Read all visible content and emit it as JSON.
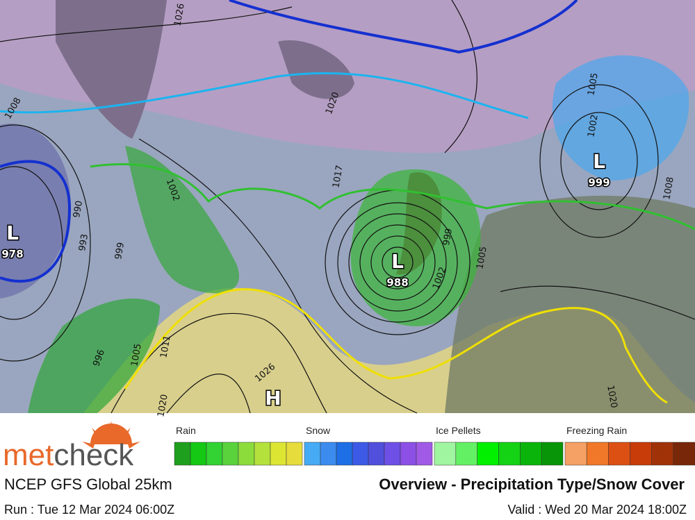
{
  "map": {
    "pressure_centers": [
      {
        "label": "L",
        "value": "978"
      },
      {
        "label": "L",
        "value": "988"
      },
      {
        "label": "L",
        "value": "999"
      },
      {
        "label": "H"
      }
    ],
    "isobar_labels": [
      "1026",
      "1008",
      "1020",
      "1005",
      "1002",
      "1017",
      "1002",
      "990",
      "993",
      "999",
      "996",
      "1005",
      "1011",
      "1026",
      "1020",
      "999",
      "1002",
      "1005",
      "1008",
      "1020"
    ]
  },
  "logo": {
    "part_1": "met",
    "part_2": "check"
  },
  "legend": [
    {
      "name": "Rain",
      "colors": [
        "#1ea01e",
        "#14c814",
        "#32d232",
        "#5ad23c",
        "#8cdc3c",
        "#b4e13c",
        "#dce632",
        "#e6dc3c"
      ]
    },
    {
      "name": "Snow",
      "colors": [
        "#46aaf5",
        "#3c8cf0",
        "#1e6ee6",
        "#3c5ae6",
        "#5050dc",
        "#6e50e6",
        "#8c50e6",
        "#a05ae6"
      ]
    },
    {
      "name": "Ice Pellets",
      "colors": [
        "#a0f5a0",
        "#64f064",
        "#00f000",
        "#14d214",
        "#0ab40a",
        "#089608"
      ]
    },
    {
      "name": "Freezing Rain",
      "colors": [
        "#f5a064",
        "#f07828",
        "#dc5014",
        "#c83c0a",
        "#a03208",
        "#782808"
      ]
    }
  ],
  "footer": {
    "model": "NCEP GFS Global 25km",
    "title": "Overview - Precipitation Type/Snow Cover",
    "run": "Run : Tue 12 Mar 2024 06:00Z",
    "valid": "Valid : Wed 20 Mar 2024 18:00Z"
  }
}
